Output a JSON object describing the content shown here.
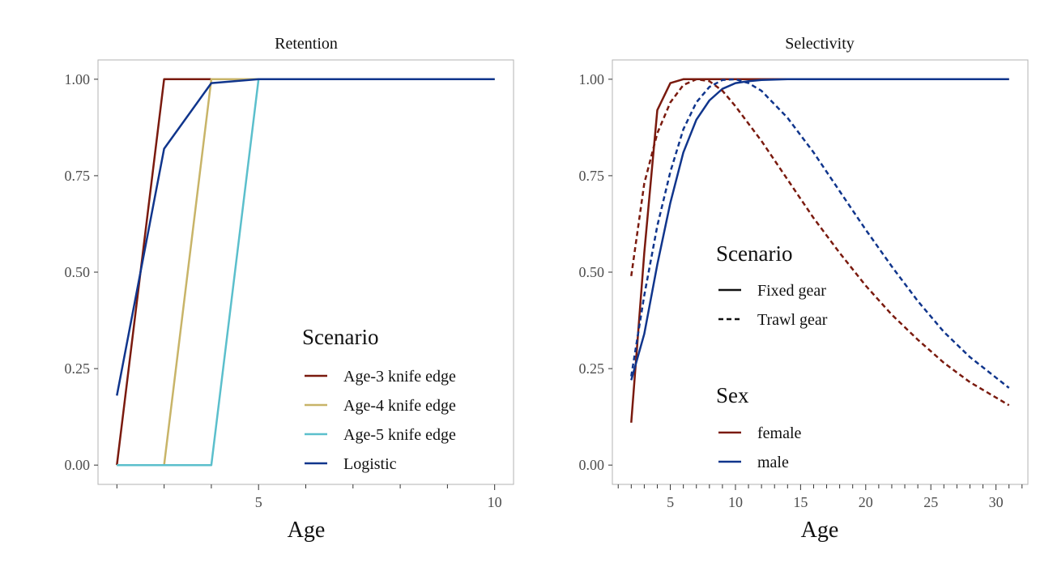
{
  "chart_data": [
    {
      "type": "line",
      "title": "Retention",
      "xlabel": "Age",
      "ylabel": "",
      "xlim": [
        1.6,
        10.4
      ],
      "ylim": [
        -0.05,
        1.05
      ],
      "x_ticks_labeled": [
        5,
        10
      ],
      "x_ticks_minor": [
        2,
        3,
        4,
        6,
        7,
        8,
        9
      ],
      "y_ticks": [
        "0.00",
        "0.25",
        "0.50",
        "0.75",
        "1.00"
      ],
      "grid": false,
      "legend": {
        "title": "Scenario",
        "placement": "bottom-right"
      },
      "series": [
        {
          "name": "Age-3 knife edge",
          "color": "#7a1a0e",
          "dash": "solid",
          "x": [
            2,
            3,
            4,
            5,
            6,
            7,
            8,
            9,
            10
          ],
          "y": [
            0.0,
            1.0,
            1.0,
            1.0,
            1.0,
            1.0,
            1.0,
            1.0,
            1.0
          ]
        },
        {
          "name": "Age-4 knife edge",
          "color": "#c8b468",
          "dash": "solid",
          "x": [
            2,
            3,
            4,
            5,
            6,
            7,
            8,
            9,
            10
          ],
          "y": [
            0.0,
            0.0,
            1.0,
            1.0,
            1.0,
            1.0,
            1.0,
            1.0,
            1.0
          ]
        },
        {
          "name": "Age-5 knife edge",
          "color": "#5bbfcc",
          "dash": "solid",
          "x": [
            2,
            3,
            4,
            5,
            6,
            7,
            8,
            9,
            10
          ],
          "y": [
            0.0,
            0.0,
            0.0,
            1.0,
            1.0,
            1.0,
            1.0,
            1.0,
            1.0
          ]
        },
        {
          "name": "Logistic",
          "color": "#10358c",
          "dash": "solid",
          "x": [
            2,
            3,
            4,
            5,
            6,
            7,
            8,
            9,
            10
          ],
          "y": [
            0.18,
            0.82,
            0.99,
            1.0,
            1.0,
            1.0,
            1.0,
            1.0,
            1.0
          ]
        }
      ]
    },
    {
      "type": "line",
      "title": "Selectivity",
      "xlabel": "Age",
      "ylabel": "",
      "xlim": [
        0.55,
        32.45
      ],
      "ylim": [
        -0.05,
        1.05
      ],
      "x_ticks_labeled": [
        5,
        10,
        15,
        20,
        25,
        30
      ],
      "x_ticks_minor": [
        1,
        2,
        3,
        4,
        6,
        7,
        8,
        9,
        11,
        12,
        13,
        14,
        16,
        17,
        18,
        19,
        21,
        22,
        23,
        24,
        26,
        27,
        28,
        29,
        31,
        32
      ],
      "y_ticks": [
        "0.00",
        "0.25",
        "0.50",
        "0.75",
        "1.00"
      ],
      "grid": false,
      "legends": [
        {
          "title": "Scenario",
          "placement": "center-right",
          "entries": [
            {
              "label": "Fixed gear",
              "dash": "solid"
            },
            {
              "label": "Trawl gear",
              "dash": "dashed"
            }
          ]
        },
        {
          "title": "Sex",
          "placement": "bottom-right",
          "entries": [
            {
              "label": "female",
              "color": "#7a1a0e"
            },
            {
              "label": "male",
              "color": "#10358c"
            }
          ]
        }
      ],
      "series": [
        {
          "sex": "female",
          "scenario": "Fixed gear",
          "color": "#7a1a0e",
          "dash": "solid",
          "x": [
            2,
            3,
            4,
            5,
            6,
            7,
            8,
            10,
            15,
            20,
            25,
            31
          ],
          "y": [
            0.11,
            0.55,
            0.92,
            0.99,
            1.0,
            1.0,
            1.0,
            1.0,
            1.0,
            1.0,
            1.0,
            1.0
          ]
        },
        {
          "sex": "male",
          "scenario": "Fixed gear",
          "color": "#10358c",
          "dash": "solid",
          "x": [
            2,
            3,
            4,
            5,
            6,
            7,
            8,
            9,
            10,
            11,
            12,
            14,
            16,
            20,
            25,
            31
          ],
          "y": [
            0.22,
            0.34,
            0.52,
            0.68,
            0.81,
            0.895,
            0.945,
            0.975,
            0.99,
            0.995,
            0.998,
            1.0,
            1.0,
            1.0,
            1.0,
            1.0
          ]
        },
        {
          "sex": "female",
          "scenario": "Trawl gear",
          "color": "#7a1a0e",
          "dash": "dashed",
          "x": [
            2,
            3,
            4,
            5,
            6,
            7,
            8,
            9,
            10,
            12,
            14,
            16,
            18,
            20,
            22,
            24,
            26,
            28,
            31
          ],
          "y": [
            0.49,
            0.73,
            0.86,
            0.94,
            0.985,
            1.0,
            0.995,
            0.97,
            0.93,
            0.84,
            0.74,
            0.64,
            0.55,
            0.465,
            0.39,
            0.325,
            0.265,
            0.215,
            0.155
          ]
        },
        {
          "sex": "male",
          "scenario": "Trawl gear",
          "color": "#10358c",
          "dash": "dashed",
          "x": [
            2,
            3,
            4,
            5,
            6,
            7,
            8,
            9,
            10,
            11,
            12,
            14,
            16,
            18,
            20,
            22,
            24,
            26,
            28,
            31
          ],
          "y": [
            0.23,
            0.44,
            0.62,
            0.76,
            0.87,
            0.94,
            0.98,
            0.998,
            1.0,
            0.99,
            0.97,
            0.9,
            0.81,
            0.71,
            0.61,
            0.515,
            0.425,
            0.345,
            0.28,
            0.2
          ]
        }
      ]
    }
  ]
}
